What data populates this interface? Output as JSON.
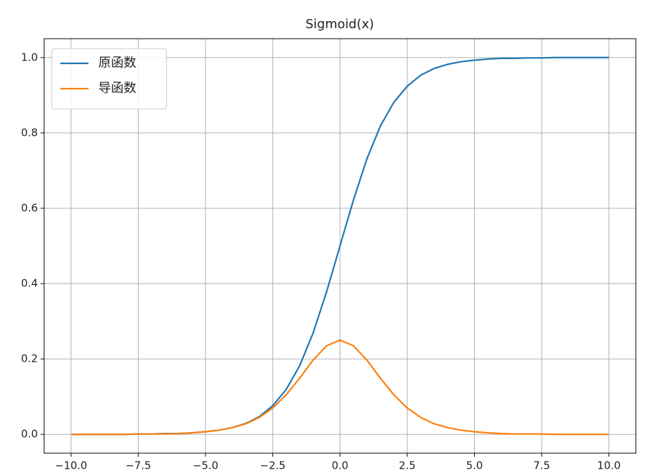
{
  "chart_data": {
    "type": "line",
    "title": "Sigmoid(x)",
    "x": [
      -10,
      -9.5,
      -9,
      -8.5,
      -8,
      -7.5,
      -7,
      -6.5,
      -6,
      -5.5,
      -5,
      -4.5,
      -4,
      -3.5,
      -3,
      -2.5,
      -2,
      -1.5,
      -1,
      -0.5,
      0,
      0.5,
      1,
      1.5,
      2,
      2.5,
      3,
      3.5,
      4,
      4.5,
      5,
      5.5,
      6,
      6.5,
      7,
      7.5,
      8,
      8.5,
      9,
      9.5,
      10
    ],
    "series": [
      {
        "name": "原函数",
        "color": "#1f77b4",
        "values": [
          0,
          0,
          0,
          0,
          0,
          0.001,
          0.001,
          0.002,
          0.002,
          0.004,
          0.007,
          0.011,
          0.018,
          0.029,
          0.047,
          0.076,
          0.119,
          0.182,
          0.269,
          0.378,
          0.5,
          0.622,
          0.731,
          0.818,
          0.881,
          0.924,
          0.953,
          0.971,
          0.982,
          0.989,
          0.993,
          0.996,
          0.998,
          0.998,
          0.999,
          0.999,
          1,
          1,
          1,
          1,
          1
        ]
      },
      {
        "name": "导函数",
        "color": "#ff7f0e",
        "values": [
          0,
          0,
          0,
          0,
          0,
          0.001,
          0.001,
          0.001,
          0.002,
          0.004,
          0.007,
          0.011,
          0.018,
          0.028,
          0.045,
          0.07,
          0.105,
          0.149,
          0.197,
          0.235,
          0.25,
          0.235,
          0.197,
          0.149,
          0.105,
          0.07,
          0.045,
          0.028,
          0.018,
          0.011,
          0.007,
          0.004,
          0.002,
          0.001,
          0.001,
          0.001,
          0,
          0,
          0,
          0,
          0
        ]
      }
    ],
    "xlim": [
      -11,
      11
    ],
    "ylim": [
      -0.05,
      1.05
    ],
    "xticks": [
      {
        "value": -10,
        "label": "−10.0"
      },
      {
        "value": -7.5,
        "label": "−7.5"
      },
      {
        "value": -5,
        "label": "−5.0"
      },
      {
        "value": -2.5,
        "label": "−2.5"
      },
      {
        "value": 0,
        "label": "0.0"
      },
      {
        "value": 2.5,
        "label": "2.5"
      },
      {
        "value": 5,
        "label": "5.0"
      },
      {
        "value": 7.5,
        "label": "7.5"
      },
      {
        "value": 10,
        "label": "10.0"
      }
    ],
    "yticks": [
      {
        "value": 0,
        "label": "0.0"
      },
      0.2,
      0.4,
      0.6,
      0.8,
      {
        "value": 1,
        "label": "1.0"
      }
    ],
    "grid": true,
    "legend": "upper left"
  }
}
